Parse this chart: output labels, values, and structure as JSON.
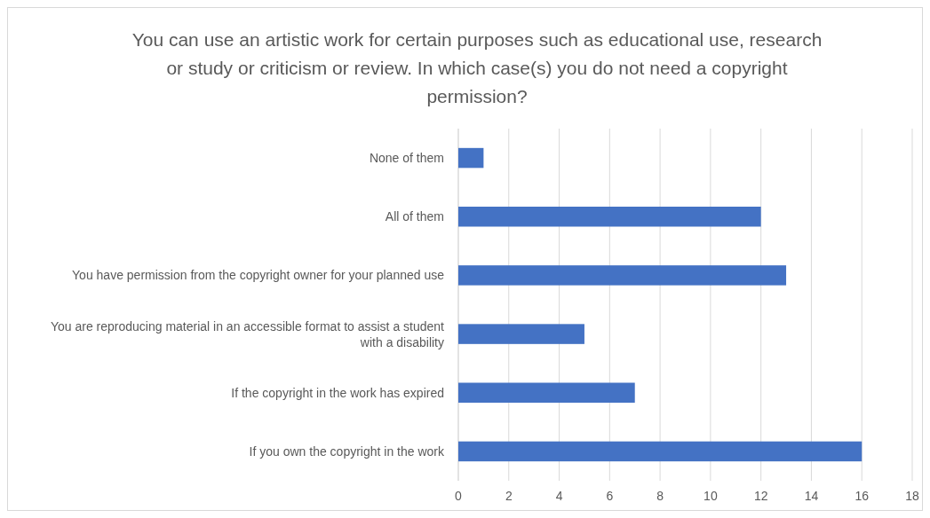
{
  "chart_data": {
    "type": "bar",
    "orientation": "horizontal",
    "title": "You can use an artistic work for certain purposes such as educational use, research or study or criticism or review. In which case(s) you do not need a copyright permission?",
    "categories": [
      "None of them",
      "All of them",
      "You have permission from the copyright owner for your planned use",
      "You are reproducing material in an accessible format to assist a student with a disability",
      "If the copyright in the work has expired",
      "If you own the copyright in the work"
    ],
    "values": [
      1,
      12,
      13,
      5,
      7,
      16
    ],
    "color": "#4472c4",
    "xlim": [
      0,
      18
    ],
    "xticks": [
      0,
      2,
      4,
      6,
      8,
      10,
      12,
      14,
      16,
      18
    ],
    "grid": "x"
  }
}
